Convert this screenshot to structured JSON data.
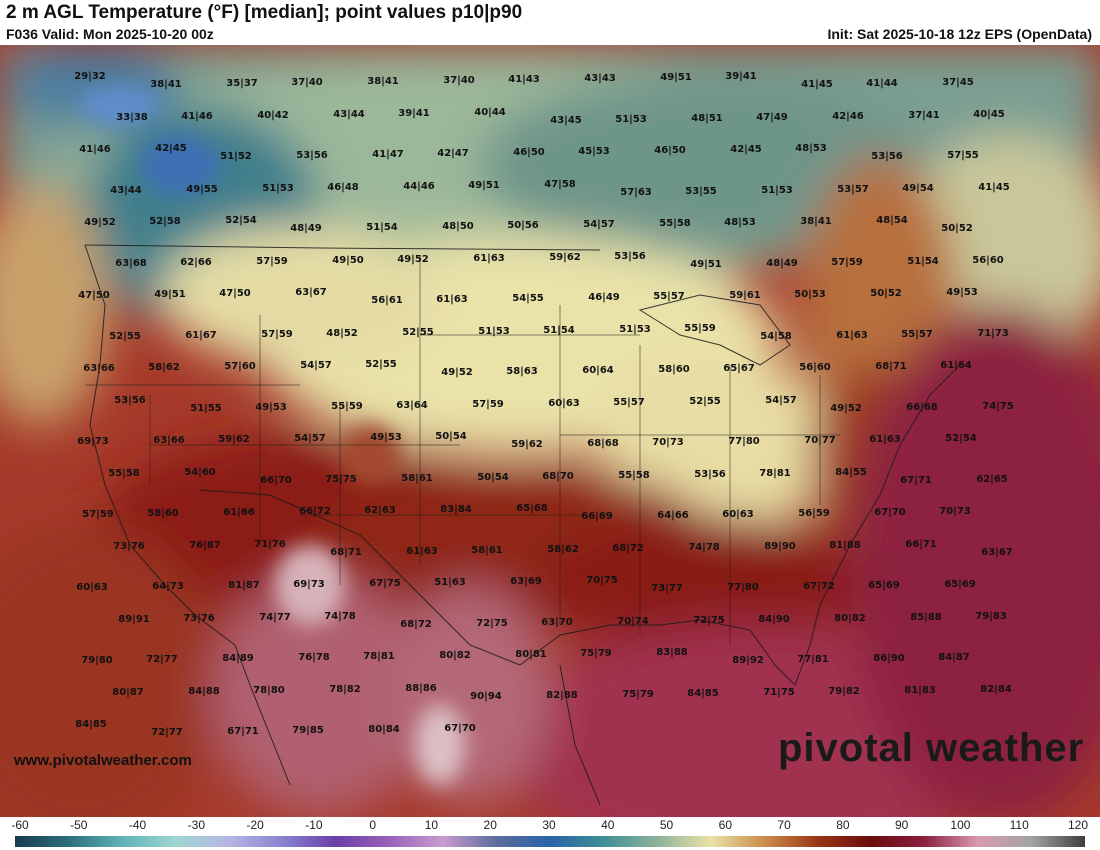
{
  "header": {
    "title": "2 m AGL Temperature (°F) [median]; point values p10|p90",
    "valid": "F036 Valid: Mon 2025-10-20 00z",
    "init": "Init: Sat 2025-10-18 12z EPS (OpenData)"
  },
  "footer": {
    "website": "www.pivotalweather.com",
    "logo": "pivotal weather"
  },
  "colorbar": {
    "ticks": [
      "-60",
      "-50",
      "-40",
      "-30",
      "-20",
      "-10",
      "0",
      "10",
      "20",
      "30",
      "40",
      "50",
      "60",
      "70",
      "80",
      "90",
      "100",
      "110",
      "120"
    ],
    "colors": [
      "#173c4e",
      "#2b6f7d",
      "#5fb2b7",
      "#9fd6d2",
      "#b6b6e3",
      "#8a83cf",
      "#6a3fa8",
      "#9a62b8",
      "#c99bd0",
      "#5c6d9c",
      "#2b63a8",
      "#3e8f96",
      "#8cb29b",
      "#e9e2a7",
      "#c98e4c",
      "#9a3616",
      "#6a0c0c",
      "#8b2040",
      "#d89ab0",
      "#a3a3a3",
      "#3e3e3e"
    ]
  },
  "points": [
    "29|32",
    "38|41",
    "35|37",
    "37|40",
    "38|41",
    "37|40",
    "41|43",
    "43|43",
    "49|51",
    "39|41",
    "41|45",
    "41|44",
    "37|45",
    "33|38",
    "41|46",
    "40|42",
    "43|44",
    "39|41",
    "40|44",
    "43|45",
    "51|53",
    "48|51",
    "47|49",
    "42|46",
    "37|41",
    "40|45",
    "41|46",
    "42|45",
    "51|52",
    "53|56",
    "41|47",
    "42|47",
    "46|50",
    "45|53",
    "46|50",
    "42|45",
    "48|53",
    "53|56",
    "57|55",
    "43|44",
    "49|55",
    "51|53",
    "46|48",
    "44|46",
    "49|51",
    "47|58",
    "57|63",
    "53|55",
    "51|53",
    "53|57",
    "49|54",
    "41|45",
    "49|52",
    "52|58",
    "52|54",
    "48|49",
    "51|54",
    "48|50",
    "50|56",
    "54|57",
    "55|58",
    "48|53",
    "38|41",
    "48|54",
    "50|52",
    "63|68",
    "62|66",
    "57|59",
    "49|50",
    "49|52",
    "61|63",
    "59|62",
    "53|56",
    "49|51",
    "48|49",
    "57|59",
    "51|54",
    "56|60",
    "47|50",
    "49|51",
    "47|50",
    "63|67",
    "56|61",
    "61|63",
    "54|55",
    "46|49",
    "55|57",
    "59|61",
    "50|53",
    "50|52",
    "49|53",
    "52|55",
    "61|67",
    "57|59",
    "48|52",
    "52|55",
    "51|53",
    "51|54",
    "51|53",
    "55|59",
    "54|58",
    "61|63",
    "55|57",
    "71|73",
    "63|66",
    "58|62",
    "57|60",
    "54|57",
    "52|55",
    "49|52",
    "58|63",
    "60|64",
    "58|60",
    "65|67",
    "56|60",
    "68|71",
    "61|64",
    "53|56",
    "51|55",
    "49|53",
    "55|59",
    "63|64",
    "57|59",
    "60|63",
    "55|57",
    "52|55",
    "54|57",
    "49|52",
    "66|68",
    "74|75",
    "69|73",
    "63|66",
    "59|62",
    "54|57",
    "49|53",
    "50|54",
    "59|62",
    "68|68",
    "70|73",
    "77|80",
    "70|77",
    "61|63",
    "52|54",
    "55|58",
    "54|60",
    "66|70",
    "75|75",
    "58|61",
    "50|54",
    "68|70",
    "55|58",
    "53|56",
    "78|81",
    "84|55",
    "67|71",
    "62|65",
    "57|59",
    "58|60",
    "61|66",
    "66|72",
    "62|63",
    "83|84",
    "65|68",
    "66|69",
    "64|66",
    "60|63",
    "56|59",
    "67|70",
    "70|73",
    "73|76",
    "76|87",
    "71|76",
    "68|71",
    "61|63",
    "58|61",
    "58|62",
    "68|72",
    "74|78",
    "89|90",
    "81|88",
    "66|71",
    "63|67",
    "60|63",
    "64|73",
    "81|87",
    "69|73",
    "67|75",
    "51|63",
    "63|69",
    "70|75",
    "73|77",
    "77|80",
    "67|72",
    "65|69",
    "65|69",
    "89|91",
    "73|76",
    "74|77",
    "74|78",
    "68|72",
    "72|75",
    "63|70",
    "70|74",
    "72|75",
    "84|90",
    "80|82",
    "85|88",
    "79|83",
    "79|80",
    "72|77",
    "84|89",
    "76|78",
    "78|81",
    "80|82",
    "80|81",
    "75|79",
    "83|88",
    "89|92",
    "77|81",
    "86|90",
    "84|87",
    "80|87",
    "84|88",
    "78|80",
    "78|82",
    "88|86",
    "90|94",
    "82|88",
    "75|79",
    "84|85",
    "71|75",
    "79|82",
    "81|83",
    "82|84",
    "84|85",
    "72|77",
    "67|71",
    "79|85",
    "80|84",
    "67|70"
  ]
}
